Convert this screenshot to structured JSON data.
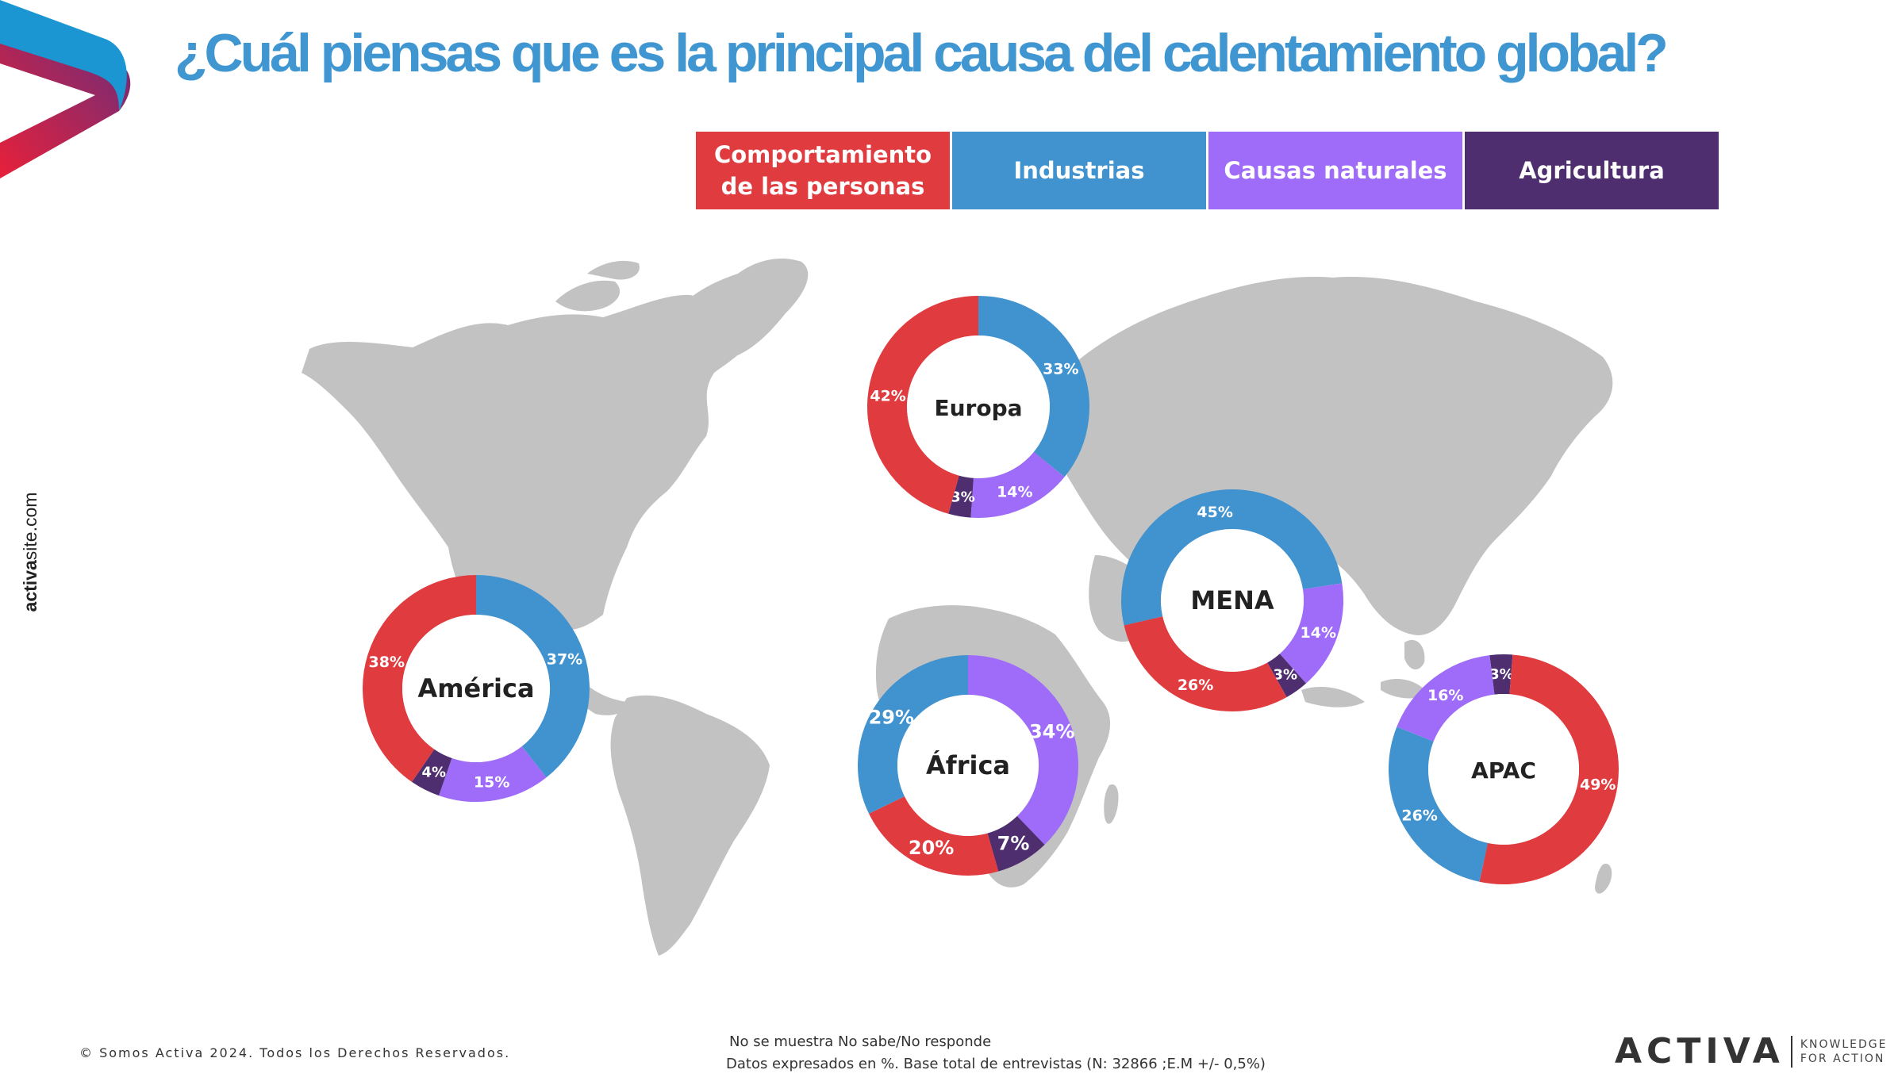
{
  "title": "¿Cuál piensas que es la principal causa del  calentamiento global?",
  "site": {
    "bold": "activa",
    "rest": "site.com"
  },
  "legend": [
    {
      "label": "Comportamiento de las personas",
      "color": "#e03c40"
    },
    {
      "label": "Industrias",
      "color": "#4193cf"
    },
    {
      "label": "Causas  naturales",
      "color": "#9e6cf8"
    },
    {
      "label": "Agricultura",
      "color": "#4e2e6f"
    }
  ],
  "chart_data": {
    "type": "donut",
    "categories": [
      "Comportamiento de las personas",
      "Industrias",
      "Causas  naturales",
      "Agricultura"
    ],
    "unit": "%",
    "regions": [
      {
        "name": "Europa",
        "values": [
          42,
          33,
          14,
          3
        ]
      },
      {
        "name": "América",
        "values": [
          38,
          37,
          15,
          4
        ]
      },
      {
        "name": "África",
        "values": [
          20,
          29,
          34,
          7
        ]
      },
      {
        "name": "MENA",
        "values": [
          26,
          45,
          14,
          3
        ]
      },
      {
        "name": "APAC",
        "values": [
          49,
          26,
          16,
          3
        ]
      }
    ],
    "labels": {
      "Europa": [
        "42%",
        "33%",
        "14%",
        "3%"
      ],
      "América": [
        "38%",
        "37%",
        "15%",
        "4%"
      ],
      "África": [
        "20%",
        "29%",
        "34%",
        "7%"
      ],
      "MENA": [
        "26%",
        "45%",
        "14%",
        "3%"
      ],
      "APAC": [
        "49%",
        "26%",
        "16%",
        "3%"
      ]
    }
  },
  "footer": {
    "copyright": "© Somos Activa 2024. Todos los Derechos Reservados.",
    "note1": "No se muestra No sabe/No responde",
    "note2": "Datos expresados en %. Base total de entrevistas (N: 32866  ;E.M +/- 0,5%)"
  },
  "brand": {
    "name": "ACTIVA",
    "tag1": "KNOWLEDGE",
    "tag2": "FOR ACTION"
  }
}
